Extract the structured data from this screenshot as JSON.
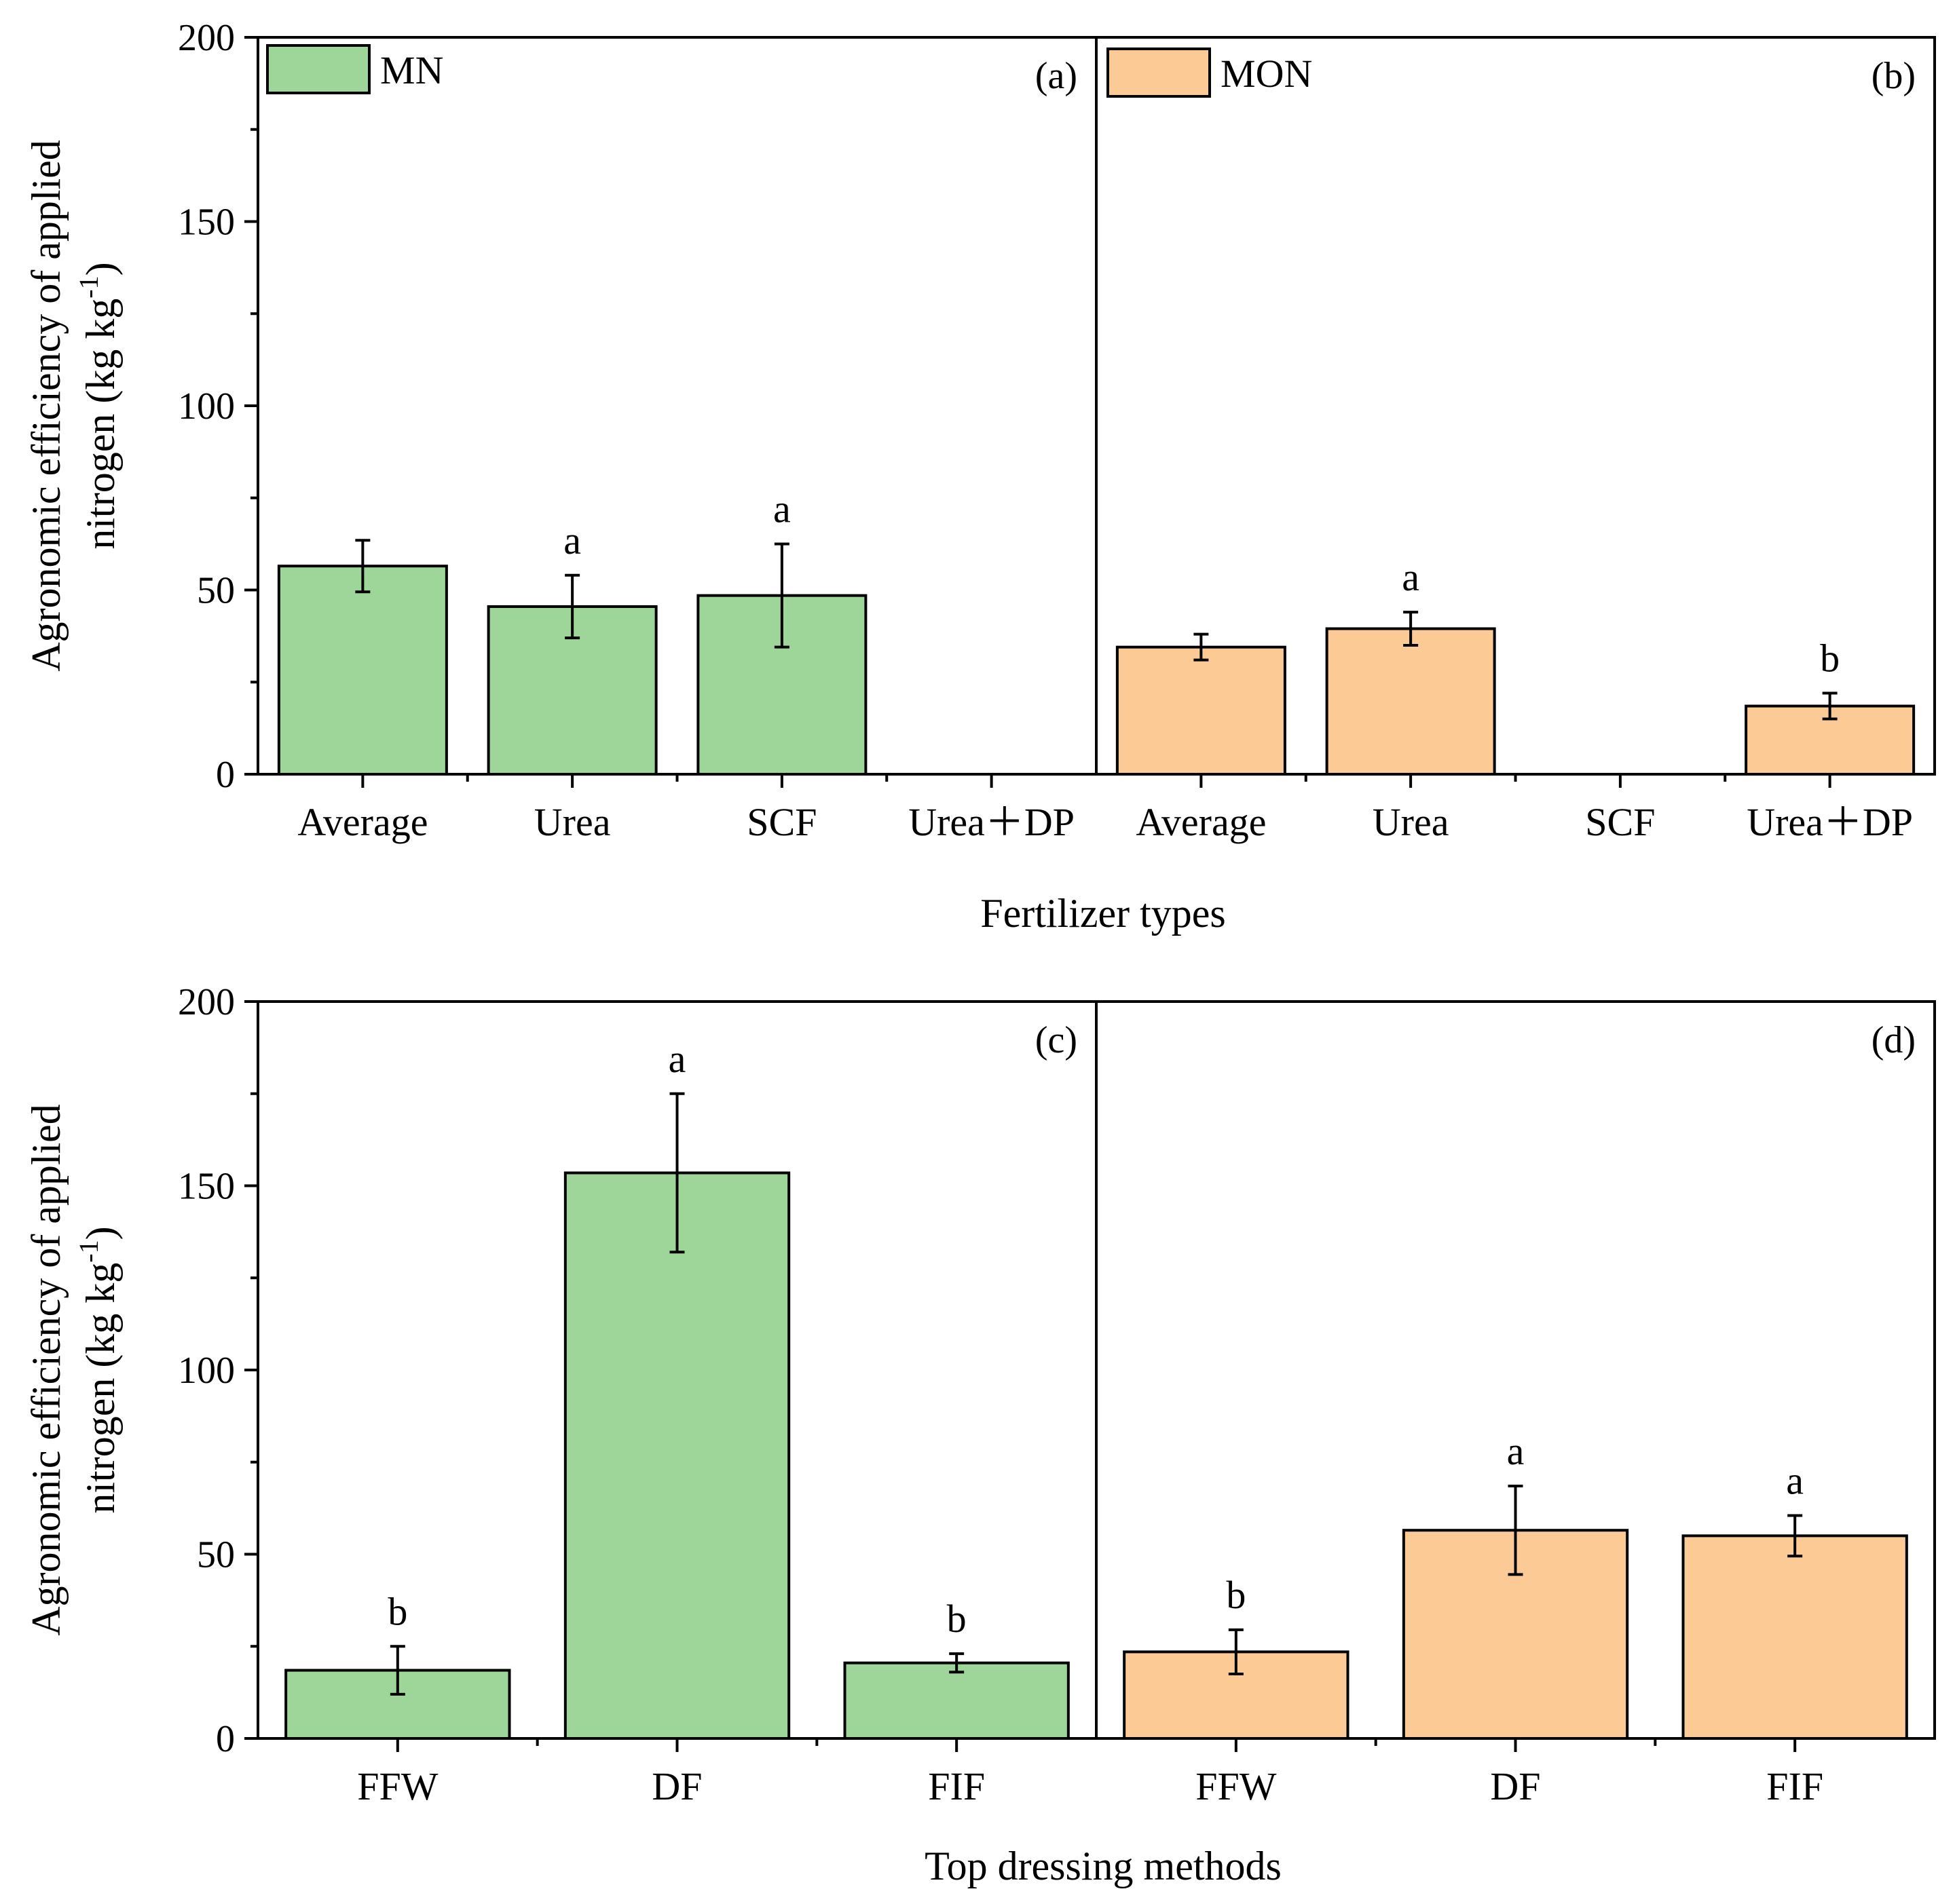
{
  "colors": {
    "MN": "#9ed69a",
    "MON": "#fcca95",
    "axis": "#000000"
  },
  "legend": [
    {
      "name": "MN",
      "color": "#9ed69a"
    },
    {
      "name": "MON",
      "color": "#fcca95"
    }
  ],
  "y_axis_title": {
    "line1": "Agronomic efficiency of applied",
    "line2_pre": "nitrogen (kg kg",
    "line2_sup": "-1",
    "line2_post": ")"
  },
  "chart_data": [
    {
      "type": "bar",
      "row": "top",
      "xlabel": "Fertilizer types",
      "ylabel": "Agronomic efficiency of applied nitrogen (kg kg-1)",
      "ylim": [
        0,
        200
      ],
      "yticks": [
        "0",
        "50",
        "100",
        "150",
        "200"
      ],
      "panels": [
        {
          "label": "(a)",
          "series": "MN",
          "legend": "MN",
          "categories": [
            "Average",
            "Urea",
            "SCF",
            "Urea＋DP"
          ],
          "values": [
            56.5,
            45.5,
            48.5,
            null
          ],
          "errors": [
            7,
            8.5,
            14,
            null
          ],
          "letters": [
            "",
            "a",
            "a",
            ""
          ]
        },
        {
          "label": "(b)",
          "series": "MON",
          "legend": "MON",
          "categories": [
            "Average",
            "Urea",
            "SCF",
            "Urea＋DP"
          ],
          "values": [
            34.5,
            39.5,
            null,
            18.5
          ],
          "errors": [
            3.5,
            4.5,
            null,
            3.5
          ],
          "letters": [
            "",
            "a",
            "",
            "b"
          ]
        }
      ]
    },
    {
      "type": "bar",
      "row": "bottom",
      "xlabel": "Top dressing methods",
      "ylabel": "Agronomic efficiency of applied nitrogen (kg kg-1)",
      "ylim": [
        0,
        200
      ],
      "yticks": [
        "0",
        "50",
        "100",
        "150",
        "200"
      ],
      "panels": [
        {
          "label": "(c)",
          "series": "MN",
          "legend": "",
          "categories": [
            "FFW",
            "DF",
            "FIF"
          ],
          "values": [
            18.5,
            153.5,
            20.5
          ],
          "errors": [
            6.5,
            21.5,
            2.5
          ],
          "letters": [
            "b",
            "a",
            "b"
          ]
        },
        {
          "label": "(d)",
          "series": "MON",
          "legend": "",
          "categories": [
            "FFW",
            "DF",
            "FIF"
          ],
          "values": [
            23.5,
            56.5,
            55
          ],
          "errors": [
            6,
            12,
            5.5
          ],
          "letters": [
            "b",
            "a",
            "a"
          ]
        }
      ]
    }
  ]
}
